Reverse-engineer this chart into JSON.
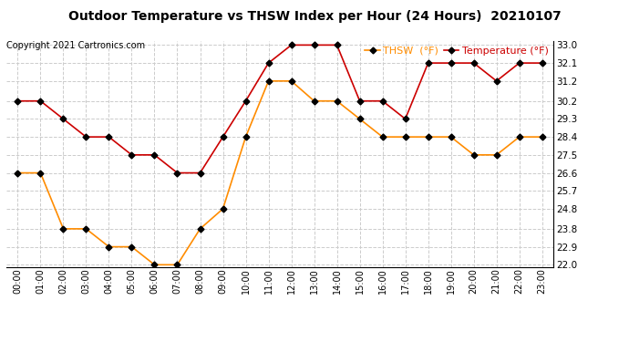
{
  "title": "Outdoor Temperature vs THSW Index per Hour (24 Hours)  20210107",
  "copyright": "Copyright 2021 Cartronics.com",
  "hours": [
    "00:00",
    "01:00",
    "02:00",
    "03:00",
    "04:00",
    "05:00",
    "06:00",
    "07:00",
    "08:00",
    "09:00",
    "10:00",
    "11:00",
    "12:00",
    "13:00",
    "14:00",
    "15:00",
    "16:00",
    "17:00",
    "18:00",
    "19:00",
    "20:00",
    "21:00",
    "22:00",
    "23:00"
  ],
  "thsw": [
    26.6,
    26.6,
    23.8,
    23.8,
    22.9,
    22.9,
    22.0,
    22.0,
    23.8,
    24.8,
    28.4,
    31.2,
    31.2,
    30.2,
    30.2,
    29.3,
    28.4,
    28.4,
    28.4,
    28.4,
    27.5,
    27.5,
    28.4,
    28.4
  ],
  "temperature": [
    30.2,
    30.2,
    29.3,
    28.4,
    28.4,
    27.5,
    27.5,
    26.6,
    26.6,
    28.4,
    30.2,
    32.1,
    33.0,
    33.0,
    33.0,
    30.2,
    30.2,
    29.3,
    32.1,
    32.1,
    32.1,
    31.2,
    32.1,
    32.1
  ],
  "thsw_color": "#FF8C00",
  "temp_color": "#CC0000",
  "marker_color": "black",
  "ylim_min": 22.0,
  "ylim_max": 33.0,
  "yticks": [
    22.0,
    22.9,
    23.8,
    24.8,
    25.7,
    26.6,
    27.5,
    28.4,
    29.3,
    30.2,
    31.2,
    32.1,
    33.0
  ],
  "background_color": "#ffffff",
  "grid_color": "#cccccc",
  "legend_thsw": "THSW  (°F)",
  "legend_temp": "Temperature (°F)"
}
